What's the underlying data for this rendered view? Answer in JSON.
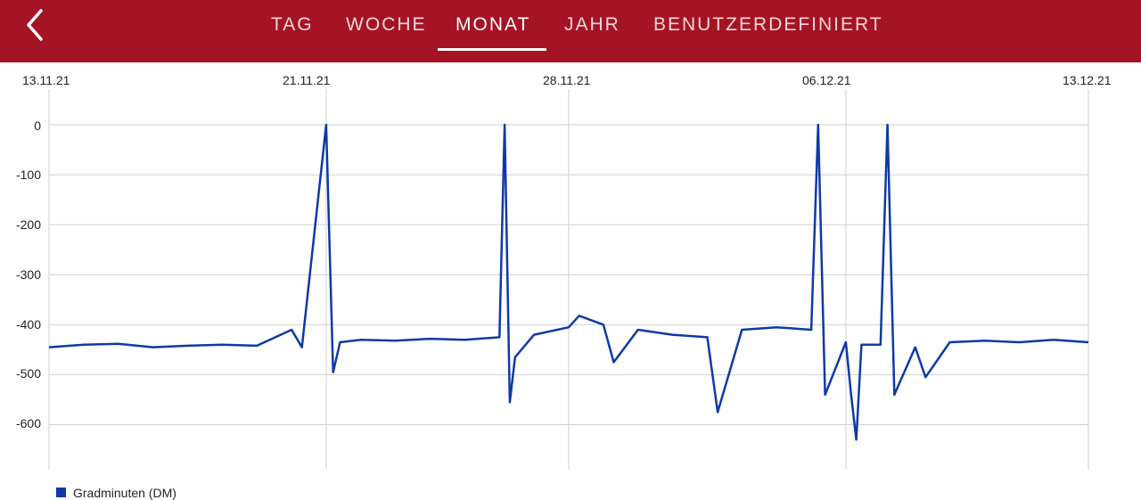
{
  "header": {
    "tabs": [
      {
        "label": "TAG",
        "active": false
      },
      {
        "label": "WOCHE",
        "active": false
      },
      {
        "label": "MONAT",
        "active": true
      },
      {
        "label": "JAHR",
        "active": false
      },
      {
        "label": "BENUTZERDEFINIERT",
        "active": false
      }
    ],
    "back_icon": "chevron-left-icon",
    "bar_color": "#a51424"
  },
  "chart_data": {
    "type": "line",
    "x_ticks": [
      "13.11.21",
      "21.11.21",
      "28.11.21",
      "06.12.21",
      "13.12.21"
    ],
    "y_ticks": [
      "0",
      "-100",
      "-200",
      "-300",
      "-400",
      "-500",
      "-600"
    ],
    "ylim": [
      -690,
      0
    ],
    "grid": true,
    "legend_position": "bottom-left",
    "series": [
      {
        "name": "Gradminuten (DM)",
        "color": "#0e3aa6",
        "points": [
          [
            "13.11.21",
            -445
          ],
          [
            "14.11.21",
            -440
          ],
          [
            "15.11.21",
            -438
          ],
          [
            "16.11.21",
            -445
          ],
          [
            "17.11.21",
            -442
          ],
          [
            "18.11.21",
            -440
          ],
          [
            "19.11.21",
            -442
          ],
          [
            "20.11.21",
            -410
          ],
          [
            "20.11.21",
            -445
          ],
          [
            "21.11.21",
            0
          ],
          [
            "21.11.21",
            -495
          ],
          [
            "21.11.21",
            -435
          ],
          [
            "22.11.21",
            -430
          ],
          [
            "23.11.21",
            -432
          ],
          [
            "24.11.21",
            -428
          ],
          [
            "25.11.21",
            -430
          ],
          [
            "26.11.21",
            -425
          ],
          [
            "26.11.21",
            0
          ],
          [
            "26.11.21",
            -555
          ],
          [
            "26.11.21",
            -465
          ],
          [
            "27.11.21",
            -420
          ],
          [
            "28.11.21",
            -405
          ],
          [
            "28.11.21",
            -382
          ],
          [
            "29.11.21",
            -400
          ],
          [
            "29.11.21",
            -475
          ],
          [
            "30.11.21",
            -410
          ],
          [
            "01.12.21",
            -420
          ],
          [
            "02.12.21",
            -425
          ],
          [
            "02.12.21",
            -575
          ],
          [
            "03.12.21",
            -410
          ],
          [
            "04.12.21",
            -405
          ],
          [
            "05.12.21",
            -410
          ],
          [
            "05.12.21",
            0
          ],
          [
            "05.12.21",
            -540
          ],
          [
            "06.12.21",
            -435
          ],
          [
            "06.12.21",
            -540
          ],
          [
            "06.12.21",
            -630
          ],
          [
            "06.12.21",
            -440
          ],
          [
            "07.12.21",
            -440
          ],
          [
            "07.12.21",
            0
          ],
          [
            "07.12.21",
            -540
          ],
          [
            "08.12.21",
            -445
          ],
          [
            "08.12.21",
            -505
          ],
          [
            "09.12.21",
            -435
          ],
          [
            "10.12.21",
            -432
          ],
          [
            "11.12.21",
            -435
          ],
          [
            "12.12.21",
            -430
          ],
          [
            "13.12.21",
            -435
          ]
        ]
      }
    ]
  }
}
